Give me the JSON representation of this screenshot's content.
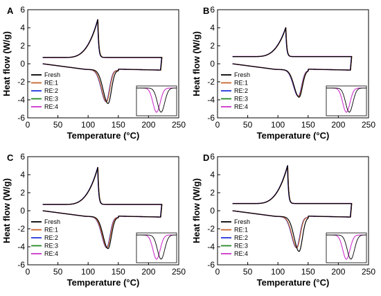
{
  "figure": {
    "xlabel": "Temperature (°C)",
    "ylabel": "Heat flow (W/g)",
    "xticks": [
      0,
      50,
      100,
      150,
      200,
      250
    ],
    "yticks": [
      -6,
      -4,
      -2,
      0,
      2,
      4,
      6
    ]
  },
  "legend": [
    "Fresh",
    "RE:1",
    "RE:2",
    "RE:3",
    "RE:4"
  ],
  "series_colors": [
    "#000000",
    "#c8642a",
    "#2233dd",
    "#228822",
    "#cc33cc"
  ],
  "chart_data": [
    {
      "panel": "A",
      "type": "line",
      "xlim": [
        0,
        250
      ],
      "ylim": [
        -6,
        6
      ],
      "heating_peak": {
        "Fresh": {
          "x": 133,
          "y": -4.4
        },
        "RE": {
          "x": 130,
          "y": -4.2
        }
      },
      "cooling_peak": {
        "x": 116,
        "y": 4.9
      },
      "cooling_baseline": 0.7
    },
    {
      "panel": "B",
      "type": "line",
      "xlim": [
        0,
        250
      ],
      "ylim": [
        -6,
        6
      ],
      "heating_peak": {
        "Fresh": {
          "x": 135,
          "y": -3.7
        },
        "RE": {
          "x": 134,
          "y": -3.6
        }
      },
      "cooling_peak": {
        "x": 113,
        "y": 4.0
      },
      "cooling_baseline": 0.8
    },
    {
      "panel": "C",
      "type": "line",
      "xlim": [
        0,
        250
      ],
      "ylim": [
        -6,
        6
      ],
      "heating_peak": {
        "Fresh": {
          "x": 133,
          "y": -4.2
        },
        "RE": {
          "x": 131,
          "y": -4.1
        }
      },
      "cooling_peak": {
        "x": 116,
        "y": 4.8
      },
      "cooling_baseline": 0.7
    },
    {
      "panel": "D",
      "type": "line",
      "xlim": [
        0,
        250
      ],
      "ylim": [
        -6,
        6
      ],
      "heating_peak": {
        "Fresh": {
          "x": 135,
          "y": -4.5
        },
        "RE": {
          "x": 131,
          "y": -4.1
        }
      },
      "cooling_peak": {
        "x": 116,
        "y": 5.0
      },
      "cooling_baseline": 0.8
    }
  ]
}
